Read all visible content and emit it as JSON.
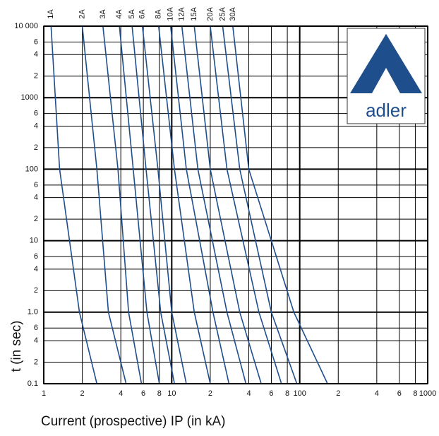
{
  "chart_data": {
    "type": "line",
    "log_x": true,
    "log_y": true,
    "grid": true,
    "color": "#1f4e8c",
    "xlabel": "Current (prospective) IP (in kA)",
    "ylabel": "t (in sec)",
    "xlim": [
      1,
      1000
    ],
    "ylim": [
      0.1,
      10000
    ],
    "xticks": [
      1,
      2,
      4,
      6,
      8,
      10,
      {
        "value": 20,
        "label": "2"
      },
      {
        "value": 40,
        "label": "4"
      },
      {
        "value": 60,
        "label": "6"
      },
      {
        "value": 80,
        "label": "8"
      },
      100,
      {
        "value": 200,
        "label": "2"
      },
      {
        "value": 400,
        "label": "4"
      },
      {
        "value": 600,
        "label": "6"
      },
      {
        "value": 800,
        "label": "8"
      },
      1000
    ],
    "yticks": [
      {
        "value": 10000,
        "label": "10 000"
      },
      {
        "value": 6000,
        "label": "6"
      },
      {
        "value": 4000,
        "label": "4"
      },
      {
        "value": 2000,
        "label": "2"
      },
      1000,
      {
        "value": 600,
        "label": "6"
      },
      {
        "value": 400,
        "label": "4"
      },
      {
        "value": 200,
        "label": "2"
      },
      100,
      {
        "value": 60,
        "label": "6"
      },
      {
        "value": 40,
        "label": "4"
      },
      {
        "value": 20,
        "label": "2"
      },
      10,
      6,
      4,
      2,
      {
        "value": 1,
        "label": "1.0"
      },
      {
        "value": 0.6,
        "label": "6"
      },
      {
        "value": 0.4,
        "label": "4"
      },
      {
        "value": 0.2,
        "label": "2"
      },
      0.1
    ],
    "series": [
      {
        "name": "1A",
        "x": [
          1.14,
          1.33,
          1.9,
          2.6
        ],
        "values": [
          10000,
          100,
          1,
          0.1
        ]
      },
      {
        "name": "2A",
        "x": [
          2.0,
          2.6,
          3.2,
          4.4
        ],
        "values": [
          10000,
          100,
          1,
          0.1
        ]
      },
      {
        "name": "3A",
        "x": [
          2.9,
          3.8,
          4.6,
          5.8
        ],
        "values": [
          10000,
          100,
          1,
          0.1
        ]
      },
      {
        "name": "4A",
        "x": [
          3.9,
          5.0,
          6.4,
          8.0
        ],
        "values": [
          10000,
          100,
          1,
          0.1
        ]
      },
      {
        "name": "5A",
        "x": [
          4.9,
          6.3,
          8.2,
          10.5
        ],
        "values": [
          10000,
          100,
          1,
          0.1
        ]
      },
      {
        "name": "6A",
        "x": [
          5.9,
          7.8,
          10,
          13
        ],
        "values": [
          10000,
          100,
          1,
          0.1
        ]
      },
      {
        "name": "8A",
        "x": [
          7.9,
          10.5,
          15,
          20
        ],
        "values": [
          10000,
          100,
          1,
          0.1
        ]
      },
      {
        "name": "10A",
        "x": [
          9.8,
          13,
          21,
          28
        ],
        "values": [
          10000,
          100,
          1,
          0.1
        ]
      },
      {
        "name": "12A",
        "x": [
          12,
          16,
          27,
          38
        ],
        "values": [
          10000,
          100,
          1,
          0.1
        ]
      },
      {
        "name": "15A",
        "x": [
          15,
          20,
          34,
          50
        ],
        "values": [
          10000,
          100,
          1,
          0.1
        ]
      },
      {
        "name": "20A",
        "x": [
          20,
          27,
          48,
          72
        ],
        "values": [
          10000,
          100,
          1,
          0.1
        ]
      },
      {
        "name": "25A",
        "x": [
          25,
          34,
          60,
          95
        ],
        "values": [
          10000,
          100,
          1,
          0.1
        ]
      },
      {
        "name": "30A",
        "x": [
          30,
          40,
          90,
          165
        ],
        "values": [
          10000,
          100,
          1,
          0.1
        ]
      }
    ]
  },
  "logo": "adler"
}
